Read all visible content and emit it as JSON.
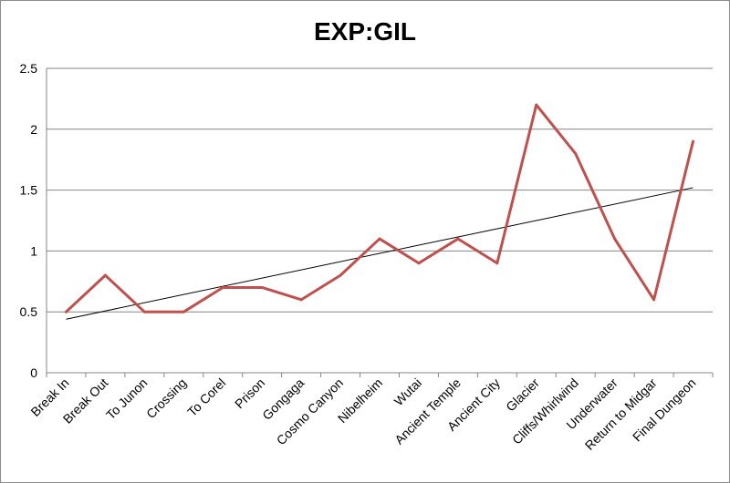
{
  "chart_data": {
    "type": "line",
    "title": "EXP:GIL",
    "xlabel": "",
    "ylabel": "",
    "ylim": [
      0,
      2.5
    ],
    "yticks": [
      "0",
      "0.5",
      "1",
      "1.5",
      "2",
      "2.5"
    ],
    "grid": "horizontal",
    "legend": "none",
    "categories": [
      "Break In",
      "Break Out",
      "To Junon",
      "Crossing",
      "To Corel",
      "Prison",
      "Gongaga",
      "Cosmo Canyon",
      "Nibelheim",
      "Wutai",
      "Ancient Temple",
      "Ancient City",
      "Glacier",
      "Cliffs/Whirlwind",
      "Underwater",
      "Return to Midgar",
      "Final Dungeon"
    ],
    "series": [
      {
        "values": [
          0.5,
          0.8,
          0.5,
          0.5,
          0.7,
          0.7,
          0.6,
          0.8,
          1.1,
          0.9,
          1.1,
          0.9,
          2.2,
          1.8,
          1.1,
          0.6,
          1.9
        ],
        "color": "#c0504d"
      }
    ],
    "trendline": {
      "type": "linear",
      "start": 0.44,
      "end": 1.52,
      "color": "#000000"
    }
  }
}
